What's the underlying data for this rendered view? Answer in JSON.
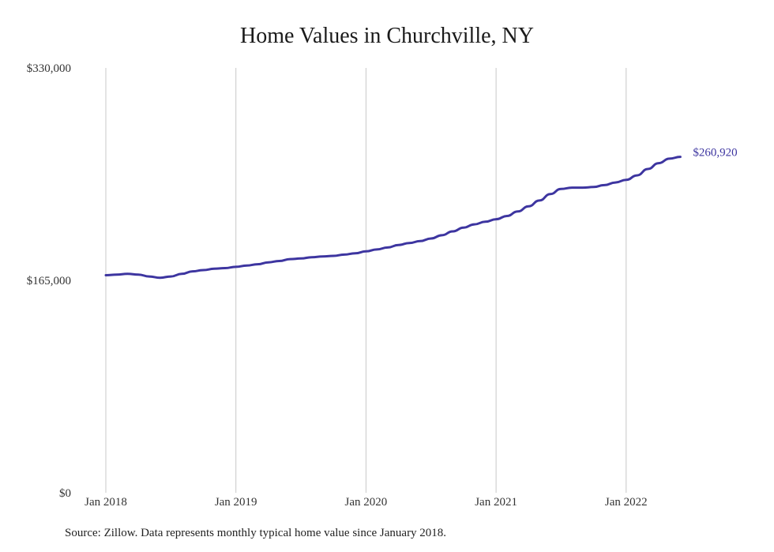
{
  "chart_data": {
    "type": "line",
    "title": "Home Values in Churchville, NY",
    "source": "Source: Zillow. Data represents monthly typical home value since January 2018.",
    "xlabel": "",
    "ylabel": "",
    "ylim": [
      0,
      330000
    ],
    "y_ticks": [
      {
        "value": 0,
        "label": "$0"
      },
      {
        "value": 165000,
        "label": "$165,000"
      },
      {
        "value": 330000,
        "label": "$330,000"
      }
    ],
    "x_ticks": [
      {
        "value": "2018-01",
        "label": "Jan 2018"
      },
      {
        "value": "2019-01",
        "label": "Jan 2019"
      },
      {
        "value": "2020-01",
        "label": "Jan 2020"
      },
      {
        "value": "2021-01",
        "label": "Jan 2021"
      },
      {
        "value": "2022-01",
        "label": "Jan 2022"
      }
    ],
    "grid": "vertical",
    "line_color": "#3d35a0",
    "end_label": "$260,920",
    "series": [
      {
        "x": [
          "2018-01",
          "2018-02",
          "2018-03",
          "2018-04",
          "2018-05",
          "2018-06",
          "2018-07",
          "2018-08",
          "2018-09",
          "2018-10",
          "2018-11",
          "2018-12",
          "2019-01",
          "2019-02",
          "2019-03",
          "2019-04",
          "2019-05",
          "2019-06",
          "2019-07",
          "2019-08",
          "2019-09",
          "2019-10",
          "2019-11",
          "2019-12",
          "2020-01",
          "2020-02",
          "2020-03",
          "2020-04",
          "2020-05",
          "2020-06",
          "2020-07",
          "2020-08",
          "2020-09",
          "2020-10",
          "2020-11",
          "2020-12",
          "2021-01",
          "2021-02",
          "2021-03",
          "2021-04",
          "2021-05",
          "2021-06",
          "2021-07",
          "2021-08",
          "2021-09",
          "2021-10",
          "2021-11",
          "2021-12",
          "2022-01",
          "2022-02",
          "2022-03",
          "2022-04",
          "2022-05",
          "2022-06"
        ],
        "values": [
          169000,
          169500,
          170000,
          169500,
          168000,
          167000,
          168000,
          170000,
          172000,
          173000,
          174000,
          174500,
          175500,
          176500,
          177500,
          179000,
          180000,
          181500,
          182000,
          183000,
          183500,
          184000,
          185000,
          186000,
          187500,
          189000,
          190500,
          192500,
          194000,
          195500,
          197500,
          200000,
          203000,
          206000,
          208500,
          210500,
          212500,
          215000,
          218500,
          222500,
          227000,
          232000,
          236000,
          237000,
          237000,
          237500,
          239000,
          241000,
          243000,
          246500,
          251500,
          256000,
          259500,
          260920
        ]
      }
    ]
  }
}
